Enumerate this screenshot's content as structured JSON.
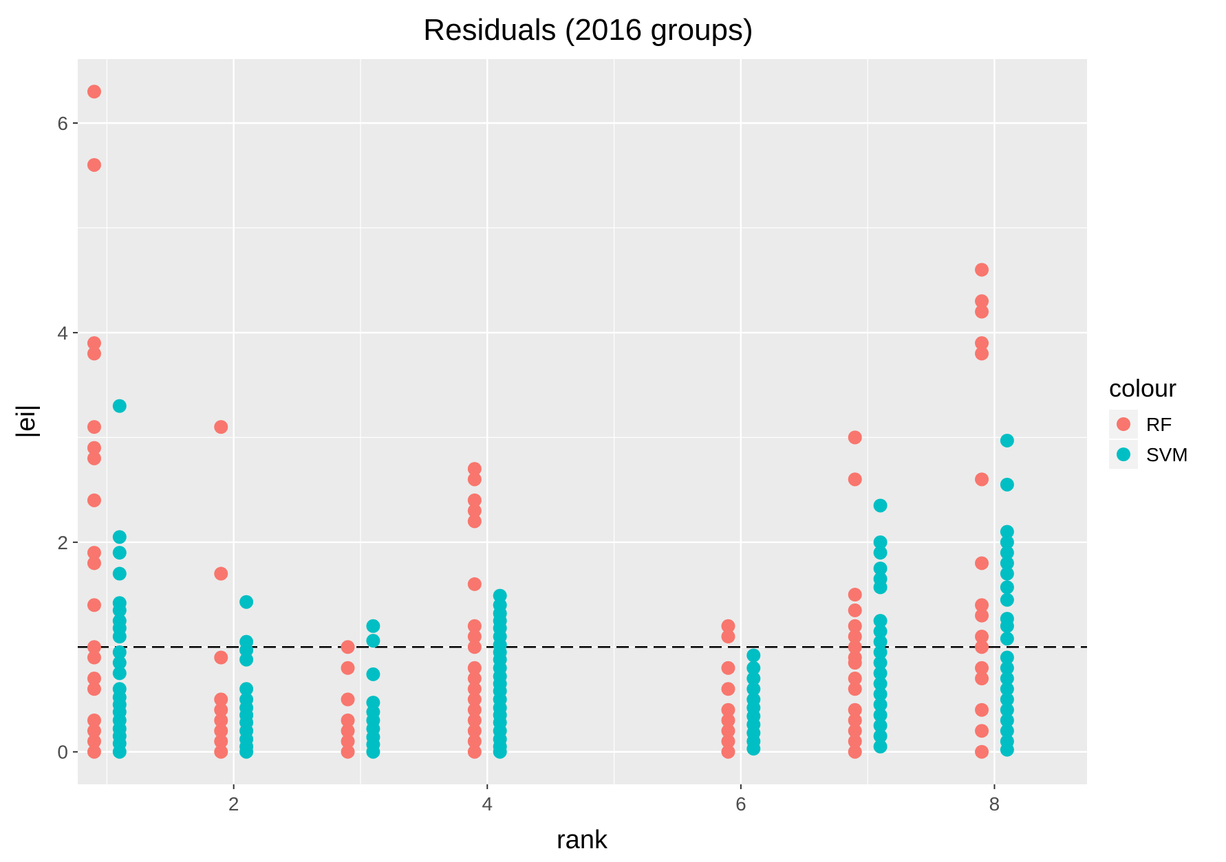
{
  "chart_data": {
    "type": "scatter",
    "title": "Residuals (2016 groups)",
    "xlabel": "rank",
    "ylabel": "|ei|",
    "xlim": [
      0.77,
      8.73
    ],
    "ylim": [
      -0.31,
      6.61
    ],
    "x_ticks": [
      2,
      4,
      6,
      8
    ],
    "x_tick_labels": [
      "2",
      "4",
      "6",
      "8"
    ],
    "y_ticks": [
      0,
      2,
      4,
      6
    ],
    "y_tick_labels": [
      "0",
      "2",
      "4",
      "6"
    ],
    "x_minor_ticks": [
      1,
      3,
      5,
      7
    ],
    "y_minor_ticks": [
      1,
      3,
      5
    ],
    "grid": true,
    "background": "#ebebeb",
    "reference_line": {
      "y": 1,
      "style": "dashed",
      "color": "#000000"
    },
    "legend": {
      "title": "colour",
      "position": "right",
      "entries": [
        {
          "label": "RF",
          "color": "#f8766d"
        },
        {
          "label": "SVM",
          "color": "#00bfc4"
        }
      ]
    },
    "series": [
      {
        "name": "RF",
        "color": "#f8766d",
        "points": [
          [
            0.9,
            6.3
          ],
          [
            0.9,
            5.6
          ],
          [
            0.9,
            3.9
          ],
          [
            0.9,
            3.8
          ],
          [
            0.9,
            3.1
          ],
          [
            0.9,
            2.9
          ],
          [
            0.9,
            2.8
          ],
          [
            0.9,
            2.4
          ],
          [
            0.9,
            1.9
          ],
          [
            0.9,
            1.8
          ],
          [
            0.9,
            1.4
          ],
          [
            0.9,
            1.0
          ],
          [
            0.9,
            0.9
          ],
          [
            0.9,
            0.7
          ],
          [
            0.9,
            0.6
          ],
          [
            0.9,
            0.3
          ],
          [
            0.9,
            0.2
          ],
          [
            0.9,
            0.1
          ],
          [
            0.9,
            0.0
          ],
          [
            1.9,
            3.1
          ],
          [
            1.9,
            1.7
          ],
          [
            1.9,
            0.9
          ],
          [
            1.9,
            0.5
          ],
          [
            1.9,
            0.4
          ],
          [
            1.9,
            0.3
          ],
          [
            1.9,
            0.2
          ],
          [
            1.9,
            0.1
          ],
          [
            1.9,
            0.0
          ],
          [
            2.9,
            1.0
          ],
          [
            2.9,
            0.8
          ],
          [
            2.9,
            0.5
          ],
          [
            2.9,
            0.3
          ],
          [
            2.9,
            0.2
          ],
          [
            2.9,
            0.1
          ],
          [
            2.9,
            0.0
          ],
          [
            3.9,
            2.7
          ],
          [
            3.9,
            2.6
          ],
          [
            3.9,
            2.4
          ],
          [
            3.9,
            2.3
          ],
          [
            3.9,
            2.2
          ],
          [
            3.9,
            1.6
          ],
          [
            3.9,
            1.2
          ],
          [
            3.9,
            1.1
          ],
          [
            3.9,
            1.0
          ],
          [
            3.9,
            0.8
          ],
          [
            3.9,
            0.7
          ],
          [
            3.9,
            0.6
          ],
          [
            3.9,
            0.5
          ],
          [
            3.9,
            0.4
          ],
          [
            3.9,
            0.3
          ],
          [
            3.9,
            0.2
          ],
          [
            3.9,
            0.1
          ],
          [
            3.9,
            0.0
          ],
          [
            5.9,
            1.2
          ],
          [
            5.9,
            1.1
          ],
          [
            5.9,
            0.8
          ],
          [
            5.9,
            0.6
          ],
          [
            5.9,
            0.4
          ],
          [
            5.9,
            0.3
          ],
          [
            5.9,
            0.2
          ],
          [
            5.9,
            0.1
          ],
          [
            5.9,
            0.0
          ],
          [
            6.9,
            3.0
          ],
          [
            6.9,
            2.6
          ],
          [
            6.9,
            1.5
          ],
          [
            6.9,
            1.35
          ],
          [
            6.9,
            1.2
          ],
          [
            6.9,
            1.1
          ],
          [
            6.9,
            1.0
          ],
          [
            6.9,
            0.9
          ],
          [
            6.9,
            0.85
          ],
          [
            6.9,
            0.7
          ],
          [
            6.9,
            0.6
          ],
          [
            6.9,
            0.4
          ],
          [
            6.9,
            0.3
          ],
          [
            6.9,
            0.2
          ],
          [
            6.9,
            0.1
          ],
          [
            6.9,
            0.0
          ],
          [
            7.9,
            4.6
          ],
          [
            7.9,
            4.3
          ],
          [
            7.9,
            4.2
          ],
          [
            7.9,
            3.9
          ],
          [
            7.9,
            3.8
          ],
          [
            7.9,
            2.6
          ],
          [
            7.9,
            1.8
          ],
          [
            7.9,
            1.4
          ],
          [
            7.9,
            1.3
          ],
          [
            7.9,
            1.1
          ],
          [
            7.9,
            1.0
          ],
          [
            7.9,
            0.8
          ],
          [
            7.9,
            0.7
          ],
          [
            7.9,
            0.4
          ],
          [
            7.9,
            0.2
          ],
          [
            7.9,
            0.0
          ]
        ]
      },
      {
        "name": "SVM",
        "color": "#00bfc4",
        "points": [
          [
            1.1,
            3.3
          ],
          [
            1.1,
            2.05
          ],
          [
            1.1,
            1.9
          ],
          [
            1.1,
            1.7
          ],
          [
            1.1,
            1.42
          ],
          [
            1.1,
            1.35
          ],
          [
            1.1,
            1.25
          ],
          [
            1.1,
            1.18
          ],
          [
            1.1,
            1.1
          ],
          [
            1.1,
            0.95
          ],
          [
            1.1,
            0.85
          ],
          [
            1.1,
            0.75
          ],
          [
            1.1,
            0.6
          ],
          [
            1.1,
            0.52
          ],
          [
            1.1,
            0.45
          ],
          [
            1.1,
            0.38
          ],
          [
            1.1,
            0.3
          ],
          [
            1.1,
            0.22
          ],
          [
            1.1,
            0.15
          ],
          [
            1.1,
            0.08
          ],
          [
            1.1,
            0.0
          ],
          [
            2.1,
            1.43
          ],
          [
            2.1,
            1.05
          ],
          [
            2.1,
            0.97
          ],
          [
            2.1,
            0.88
          ],
          [
            2.1,
            0.6
          ],
          [
            2.1,
            0.5
          ],
          [
            2.1,
            0.42
          ],
          [
            2.1,
            0.35
          ],
          [
            2.1,
            0.28
          ],
          [
            2.1,
            0.2
          ],
          [
            2.1,
            0.12
          ],
          [
            2.1,
            0.05
          ],
          [
            2.1,
            0.0
          ],
          [
            3.1,
            1.2
          ],
          [
            3.1,
            1.06
          ],
          [
            3.1,
            0.74
          ],
          [
            3.1,
            0.47
          ],
          [
            3.1,
            0.38
          ],
          [
            3.1,
            0.3
          ],
          [
            3.1,
            0.22
          ],
          [
            3.1,
            0.14
          ],
          [
            3.1,
            0.07
          ],
          [
            3.1,
            0.0
          ],
          [
            4.1,
            1.49
          ],
          [
            4.1,
            1.4
          ],
          [
            4.1,
            1.32
          ],
          [
            4.1,
            1.25
          ],
          [
            4.1,
            1.18
          ],
          [
            4.1,
            1.1
          ],
          [
            4.1,
            1.02
          ],
          [
            4.1,
            0.95
          ],
          [
            4.1,
            0.88
          ],
          [
            4.1,
            0.8
          ],
          [
            4.1,
            0.72
          ],
          [
            4.1,
            0.65
          ],
          [
            4.1,
            0.58
          ],
          [
            4.1,
            0.5
          ],
          [
            4.1,
            0.42
          ],
          [
            4.1,
            0.35
          ],
          [
            4.1,
            0.28
          ],
          [
            4.1,
            0.2
          ],
          [
            4.1,
            0.12
          ],
          [
            4.1,
            0.05
          ],
          [
            4.1,
            0.0
          ],
          [
            6.1,
            0.92
          ],
          [
            6.1,
            0.8
          ],
          [
            6.1,
            0.7
          ],
          [
            6.1,
            0.6
          ],
          [
            6.1,
            0.5
          ],
          [
            6.1,
            0.42
          ],
          [
            6.1,
            0.34
          ],
          [
            6.1,
            0.26
          ],
          [
            6.1,
            0.18
          ],
          [
            6.1,
            0.1
          ],
          [
            6.1,
            0.03
          ],
          [
            7.1,
            2.35
          ],
          [
            7.1,
            2.0
          ],
          [
            7.1,
            1.9
          ],
          [
            7.1,
            1.75
          ],
          [
            7.1,
            1.65
          ],
          [
            7.1,
            1.57
          ],
          [
            7.1,
            1.25
          ],
          [
            7.1,
            1.15
          ],
          [
            7.1,
            1.05
          ],
          [
            7.1,
            0.95
          ],
          [
            7.1,
            0.85
          ],
          [
            7.1,
            0.75
          ],
          [
            7.1,
            0.65
          ],
          [
            7.1,
            0.55
          ],
          [
            7.1,
            0.45
          ],
          [
            7.1,
            0.35
          ],
          [
            7.1,
            0.25
          ],
          [
            7.1,
            0.15
          ],
          [
            7.1,
            0.05
          ],
          [
            8.1,
            2.97
          ],
          [
            8.1,
            2.55
          ],
          [
            8.1,
            2.1
          ],
          [
            8.1,
            2.0
          ],
          [
            8.1,
            1.9
          ],
          [
            8.1,
            1.8
          ],
          [
            8.1,
            1.7
          ],
          [
            8.1,
            1.57
          ],
          [
            8.1,
            1.45
          ],
          [
            8.1,
            1.27
          ],
          [
            8.1,
            1.2
          ],
          [
            8.1,
            1.08
          ],
          [
            8.1,
            0.9
          ],
          [
            8.1,
            0.8
          ],
          [
            8.1,
            0.7
          ],
          [
            8.1,
            0.6
          ],
          [
            8.1,
            0.5
          ],
          [
            8.1,
            0.4
          ],
          [
            8.1,
            0.3
          ],
          [
            8.1,
            0.2
          ],
          [
            8.1,
            0.1
          ],
          [
            8.1,
            0.02
          ]
        ]
      }
    ]
  }
}
